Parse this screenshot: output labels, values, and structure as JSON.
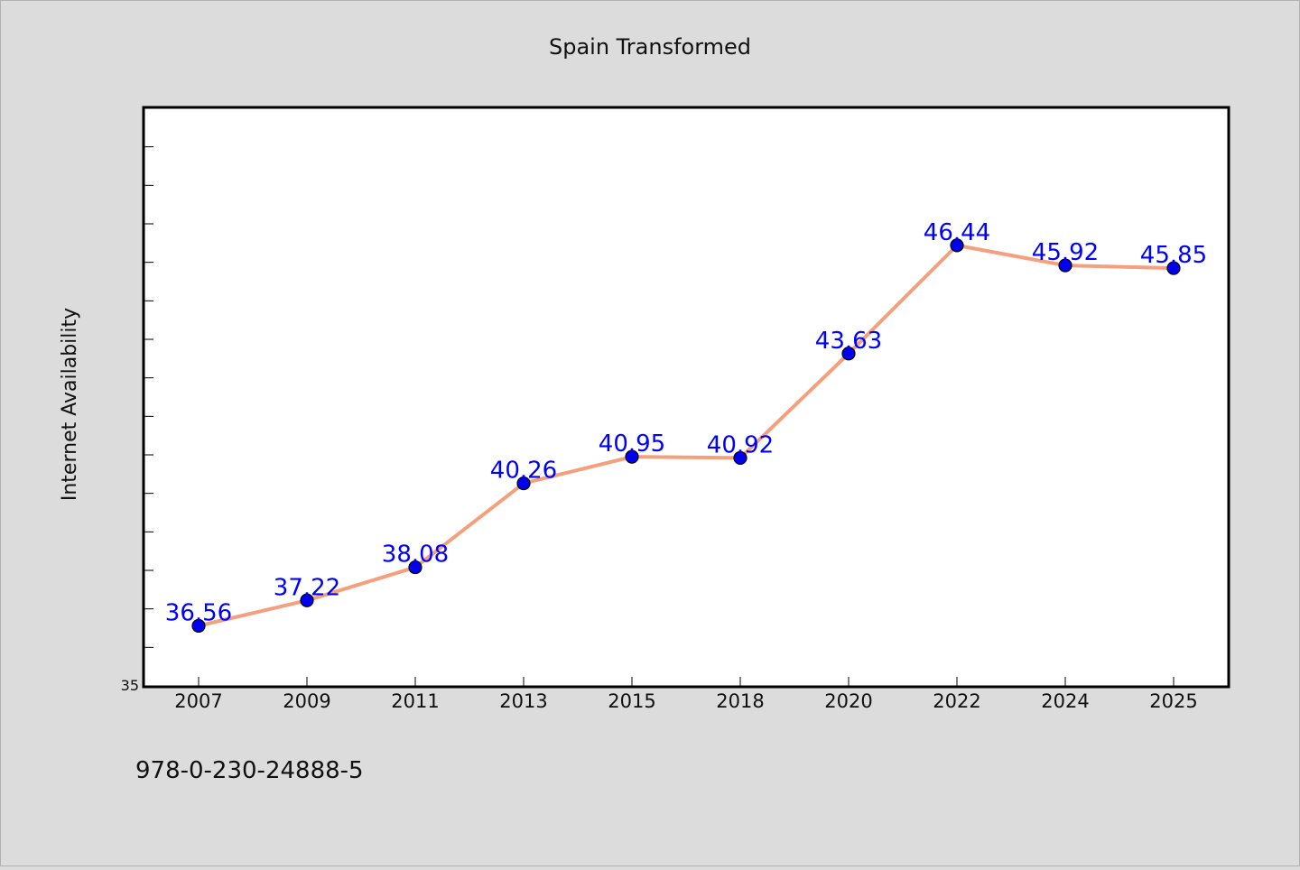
{
  "chart_data": {
    "type": "line",
    "title": "Spain Transformed",
    "xlabel": "",
    "ylabel": "Internet Availability",
    "categories": [
      "2007",
      "2009",
      "2011",
      "2013",
      "2015",
      "2018",
      "2020",
      "2022",
      "2024",
      "2025"
    ],
    "series": [
      {
        "values": [
          36.56,
          37.22,
          38.08,
          40.26,
          40.95,
          40.92,
          43.63,
          46.44,
          45.92,
          45.85
        ],
        "value_labels": [
          "36.56",
          "37.22",
          "38.08",
          "40.26",
          "40.95",
          "40.92",
          "43.63",
          "46.44",
          "45.92",
          "45.85"
        ]
      }
    ],
    "ylim": [
      35,
      50
    ],
    "ytick_labels": [
      "35"
    ],
    "grid": false,
    "legend": "none",
    "colors": {
      "line": "#f4a07c",
      "marker": "#0000ee",
      "value_label": "#0000ff",
      "plot_background": "#ffffff",
      "page_background": "#dcdcdc"
    }
  },
  "footer": {
    "isbn": "978-0-230-24888-5"
  }
}
